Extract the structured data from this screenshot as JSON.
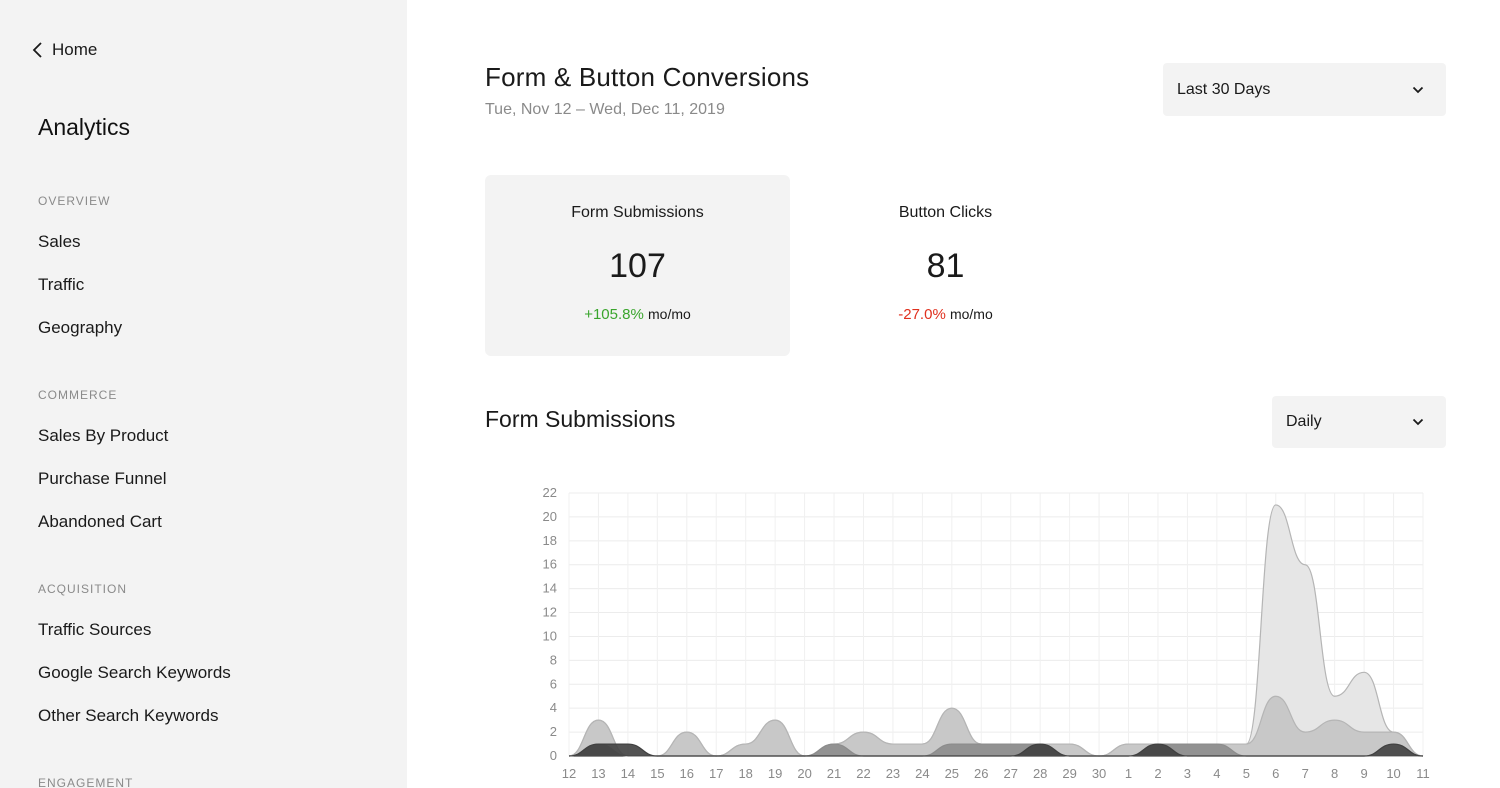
{
  "sidebar": {
    "back_label": "Home",
    "title": "Analytics",
    "sections": [
      {
        "label": "OVERVIEW",
        "items": [
          "Sales",
          "Traffic",
          "Geography"
        ]
      },
      {
        "label": "COMMERCE",
        "items": [
          "Sales By Product",
          "Purchase Funnel",
          "Abandoned Cart"
        ]
      },
      {
        "label": "ACQUISITION",
        "items": [
          "Traffic Sources",
          "Google Search Keywords",
          "Other Search Keywords"
        ]
      },
      {
        "label": "ENGAGEMENT",
        "items": []
      }
    ]
  },
  "header": {
    "title": "Form & Button Conversions",
    "date_range": "Tue, Nov 12 – Wed, Dec 11, 2019",
    "period_select": "Last 30 Days"
  },
  "kpis": [
    {
      "label": "Form Submissions",
      "value": "107",
      "delta": "+105.8%",
      "unit": "mo/mo",
      "trend": "up",
      "selected": true
    },
    {
      "label": "Button Clicks",
      "value": "81",
      "delta": "-27.0%",
      "unit": "mo/mo",
      "trend": "down",
      "selected": false
    }
  ],
  "chart_section": {
    "title": "Form Submissions",
    "interval_select": "Daily"
  },
  "icons": {
    "back": "chevron-left-icon",
    "dropdown": "chevron-down-icon"
  },
  "colors": {
    "positive": "#3aa52d",
    "negative": "#e0301e",
    "sidebar_bg": "#f3f3f3"
  },
  "chart_data": {
    "type": "area",
    "x": [
      "12",
      "13",
      "14",
      "15",
      "16",
      "17",
      "18",
      "19",
      "20",
      "21",
      "22",
      "23",
      "24",
      "25",
      "26",
      "27",
      "28",
      "29",
      "30",
      "1",
      "2",
      "3",
      "4",
      "5",
      "6",
      "7",
      "8",
      "9",
      "10",
      "11"
    ],
    "ylim": [
      0,
      22
    ],
    "yticks": [
      0,
      2,
      4,
      6,
      8,
      10,
      12,
      14,
      16,
      18,
      20,
      22
    ],
    "grid": true,
    "series": [
      {
        "color": "#e6e6e6",
        "values": [
          0,
          3,
          0,
          0,
          2,
          0,
          1,
          3,
          0,
          1,
          2,
          1,
          1,
          4,
          1,
          1,
          1,
          1,
          0,
          1,
          1,
          1,
          1,
          1,
          21,
          16,
          5,
          7,
          2,
          0
        ]
      },
      {
        "color": "#c4c4c4",
        "values": [
          0,
          3,
          0,
          0,
          2,
          0,
          1,
          3,
          0,
          1,
          2,
          1,
          1,
          4,
          1,
          1,
          1,
          1,
          0,
          1,
          1,
          1,
          1,
          1,
          5,
          2,
          3,
          2,
          2,
          0
        ]
      },
      {
        "color": "#8c8c8c",
        "values": [
          0,
          1,
          0,
          0,
          0,
          0,
          0,
          0,
          0,
          1,
          0,
          0,
          0,
          1,
          1,
          1,
          1,
          0,
          0,
          0,
          1,
          1,
          1,
          0,
          0,
          0,
          0,
          0,
          0,
          0
        ]
      },
      {
        "color": "#404040",
        "values": [
          0,
          1,
          1,
          0,
          0,
          0,
          0,
          0,
          0,
          0,
          0,
          0,
          0,
          0,
          0,
          0,
          1,
          0,
          0,
          0,
          1,
          0,
          0,
          0,
          0,
          0,
          0,
          0,
          1,
          0
        ]
      }
    ]
  }
}
